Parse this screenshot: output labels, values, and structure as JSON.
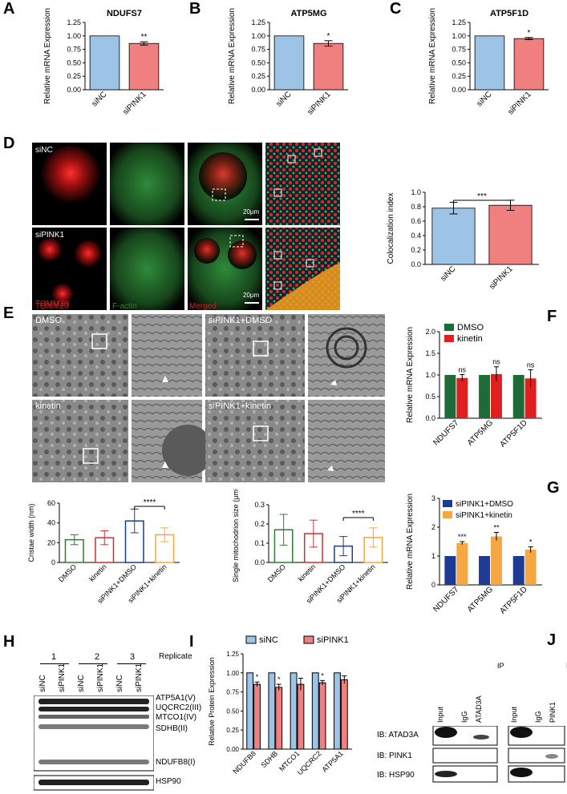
{
  "panel_labels": [
    "A",
    "B",
    "C",
    "D",
    "E",
    "F",
    "G",
    "H",
    "I",
    "J"
  ],
  "colors": {
    "blue": "#9dc3e6",
    "pink": "#f08080",
    "dmso": "#1f6b38",
    "kinetin": "#e02020",
    "navy": "#1f3a93",
    "orange": "#f4a742",
    "e_green": "#2e7d32",
    "e_red": "#d32f2f",
    "e_blue": "#1a3c8c",
    "e_orange": "#f4a742"
  },
  "chart_data": [
    {
      "id": "A",
      "type": "bar",
      "title": "NDUFS7",
      "ylabel": "Relative mRNA Expression",
      "categories": [
        "siNC",
        "siPINK1"
      ],
      "values": [
        1.0,
        0.86
      ],
      "errors": [
        0,
        0.03
      ],
      "sig": [
        "",
        "**"
      ],
      "ylim": [
        0,
        1.25
      ],
      "yticks": [
        "0.00",
        "0.25",
        "0.50",
        "0.75",
        "1.00",
        "1.25"
      ]
    },
    {
      "id": "B",
      "type": "bar",
      "title": "ATP5MG",
      "ylabel": "Relative mRNA Expression",
      "categories": [
        "siNC",
        "siPINK1"
      ],
      "values": [
        1.0,
        0.86
      ],
      "errors": [
        0,
        0.05
      ],
      "sig": [
        "",
        "*"
      ],
      "ylim": [
        0,
        1.25
      ],
      "yticks": [
        "0.00",
        "0.25",
        "0.50",
        "0.75",
        "1.00",
        "1.25"
      ]
    },
    {
      "id": "C",
      "type": "bar",
      "title": "ATP5F1D",
      "ylabel": "Relative mRNA Expression",
      "categories": [
        "siNC",
        "siPINK1"
      ],
      "values": [
        1.0,
        0.95
      ],
      "errors": [
        0,
        0.02
      ],
      "sig": [
        "",
        "*"
      ],
      "ylim": [
        0,
        1.25
      ],
      "yticks": [
        "0.00",
        "0.25",
        "0.50",
        "0.75",
        "1.00",
        "1.25"
      ]
    },
    {
      "id": "D",
      "type": "bar",
      "title": "",
      "ylabel": "Colocalization index",
      "categories": [
        "siNC",
        "siPINK1"
      ],
      "values": [
        0.78,
        0.82
      ],
      "errors": [
        0.08,
        0.07
      ],
      "sig_bracket": "***",
      "ylim": [
        0,
        1.0
      ],
      "yticks": [
        "0.0",
        "0.2",
        "0.4",
        "0.6",
        "0.8",
        "1.0"
      ]
    },
    {
      "id": "E1",
      "type": "bar",
      "ylabel": "Cristae width (nm)",
      "categories": [
        "DMSO",
        "kinetin",
        "siPINK1+DMSO",
        "siPINK1+kinetin"
      ],
      "values": [
        23,
        25,
        42,
        28
      ],
      "errors": [
        5,
        7,
        12,
        7
      ],
      "sig_bracket": "****",
      "ylim": [
        0,
        60
      ],
      "yticks": [
        "0",
        "20",
        "40",
        "60"
      ]
    },
    {
      "id": "E2",
      "type": "bar",
      "ylabel": "Single mitochodrion size (μm²)",
      "categories": [
        "DMSO",
        "kinetin",
        "siPINK1+DMSO",
        "siPINK1+kinetin"
      ],
      "values": [
        0.17,
        0.15,
        0.085,
        0.13
      ],
      "errors": [
        0.08,
        0.07,
        0.05,
        0.05
      ],
      "sig_bracket": "****",
      "ylim": [
        0,
        0.3
      ],
      "yticks": [
        "0.0",
        "0.1",
        "0.2",
        "0.3"
      ]
    },
    {
      "id": "F",
      "type": "bar",
      "ylabel": "Relative mRNA Expression",
      "categories": [
        "NDUFS7",
        "ATP5MG",
        "ATP5F1D"
      ],
      "series": [
        {
          "name": "DMSO",
          "values": [
            1.0,
            1.0,
            1.0
          ]
        },
        {
          "name": "kinetin",
          "values": [
            0.93,
            1.02,
            0.92
          ]
        }
      ],
      "errors": [
        0.08,
        0.17,
        0.2
      ],
      "sig": [
        "ns",
        "ns",
        "ns"
      ],
      "ylim": [
        0,
        2.0
      ],
      "yticks": [
        "0.0",
        "0.5",
        "1.0",
        "1.5",
        "2.0"
      ]
    },
    {
      "id": "G",
      "type": "bar",
      "ylabel": "Relative mRNA Expression",
      "categories": [
        "NDUFS7",
        "ATP5MG",
        "ATP5F1D"
      ],
      "series": [
        {
          "name": "siPINK1+DMSO",
          "values": [
            1.0,
            1.0,
            1.0
          ]
        },
        {
          "name": "siPINK1+kinetin",
          "values": [
            1.45,
            1.68,
            1.22
          ]
        }
      ],
      "errors": [
        0.05,
        0.14,
        0.1
      ],
      "sig": [
        "***",
        "**",
        "*"
      ],
      "ylim": [
        0,
        3
      ],
      "yticks": [
        "0",
        "1",
        "2",
        "3"
      ]
    },
    {
      "id": "I",
      "type": "bar",
      "ylabel": "Relative Protein Expression",
      "categories": [
        "NDUFB8",
        "SDHB",
        "MTCO1",
        "UQCRC2",
        "ATP5A1"
      ],
      "series": [
        {
          "name": "siNC",
          "values": [
            1,
            1,
            1,
            1,
            1
          ]
        },
        {
          "name": "siPINK1",
          "values": [
            0.85,
            0.81,
            0.85,
            0.87,
            0.91
          ]
        }
      ],
      "errors": [
        0.03,
        0.04,
        0.08,
        0.03,
        0.05
      ],
      "sig": [
        "*",
        "*",
        "",
        "*",
        ""
      ],
      "ylim": [
        0,
        1.25
      ],
      "yticks": [
        "0.00",
        "0.25",
        "0.50",
        "0.75",
        "1.00",
        "1.25"
      ]
    }
  ],
  "panel_d": {
    "row_labels": [
      "siNC",
      "siPINK1"
    ],
    "channels": [
      "TOMM20",
      "F-actin",
      "Merged"
    ],
    "scale": "20μm"
  },
  "panel_e": {
    "labels": [
      "DMSO",
      "siPINK1+DMSO",
      "kinetin",
      "siPINK1+kinetin"
    ]
  },
  "panel_h": {
    "replicate_numbers": [
      "1",
      "2",
      "3"
    ],
    "replicate_label": "Replicate",
    "lanes": [
      "siNC",
      "siPINK1",
      "siNC",
      "siPINK1",
      "siNC",
      "siPINK1"
    ],
    "bands": [
      "ATP5A1(V)",
      "UQCRC2(III)",
      "MTCO1(IV)",
      "SDHB(II)",
      "NDUFB8(I)"
    ],
    "loading": "HSP90"
  },
  "panel_j": {
    "ip": "IP",
    "lanes_left": [
      "Input",
      "IgG",
      "ATAD3A"
    ],
    "lanes_right": [
      "Input",
      "IgG",
      "PINK1"
    ],
    "rows": [
      "IB: ATAD3A",
      "IB: PINK1",
      "IB: HSP90"
    ]
  }
}
